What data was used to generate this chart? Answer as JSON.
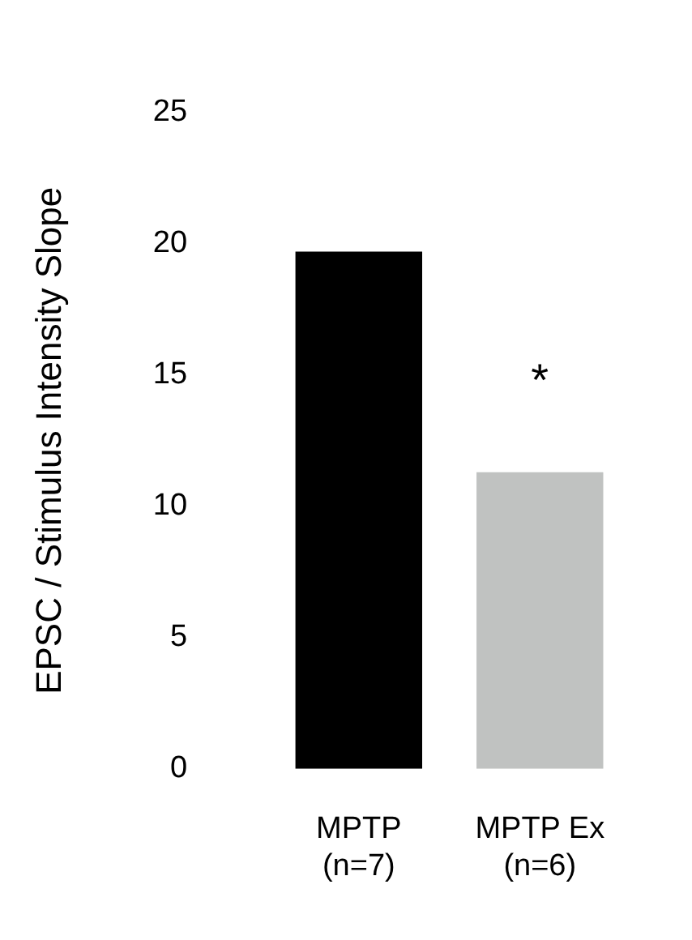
{
  "chart_data": {
    "type": "bar",
    "ylabel": "EPSC / Stimulus Intensity Slope",
    "categories": [
      "MPTP\n(n=7)",
      "MPTP Ex\n(n=6)"
    ],
    "values": [
      19.7,
      11.3
    ],
    "colors": [
      "#000000",
      "#c0c2c1"
    ],
    "ylim": [
      0,
      25
    ],
    "yticks": [
      0,
      5,
      10,
      15,
      20,
      25
    ],
    "grid": false,
    "legend": false,
    "annotations": [
      "*"
    ]
  }
}
